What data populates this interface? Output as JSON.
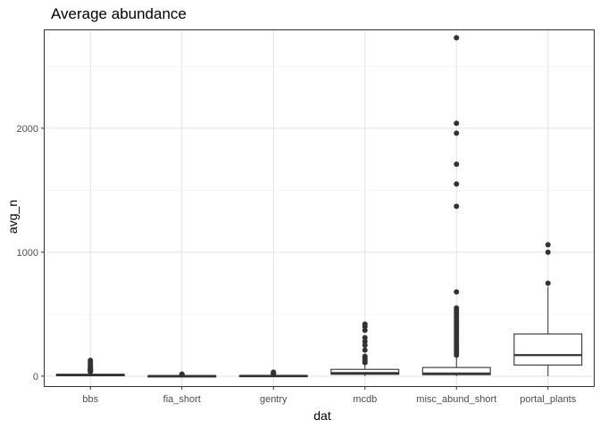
{
  "chart_data": {
    "type": "boxplot",
    "title": "Average abundance",
    "xlabel": "dat",
    "ylabel": "avg_n",
    "ylim": [
      -80,
      2790
    ],
    "yticks": [
      0,
      1000,
      2000
    ],
    "ytick_labels": [
      "0",
      "1000",
      "2000"
    ],
    "grid": "on",
    "categories": [
      "bbs",
      "fia_short",
      "gentry",
      "mcdb",
      "misc_abund_short",
      "portal_plants"
    ],
    "boxes": [
      {
        "category": "bbs",
        "whisker_low": 0,
        "q1": 3,
        "median": 8,
        "q3": 16,
        "whisker_high": 30,
        "outliers": [
          35,
          40,
          45,
          50,
          55,
          62,
          70,
          80,
          95,
          110,
          128
        ]
      },
      {
        "category": "fia_short",
        "whisker_low": 0,
        "q1": 1,
        "median": 2,
        "q3": 4,
        "whisker_high": 8,
        "outliers": [
          10,
          13,
          17
        ]
      },
      {
        "category": "gentry",
        "whisker_low": 0,
        "q1": 1,
        "median": 3,
        "q3": 6,
        "whisker_high": 12,
        "outliers": [
          15,
          20,
          25,
          32
        ]
      },
      {
        "category": "mcdb",
        "whisker_low": 0,
        "q1": 15,
        "median": 25,
        "q3": 55,
        "whisker_high": 95,
        "outliers": [
          110,
          125,
          140,
          160,
          210,
          250,
          280,
          310,
          370,
          400,
          420
        ]
      },
      {
        "category": "misc_abund_short",
        "whisker_low": 0,
        "q1": 12,
        "median": 22,
        "q3": 70,
        "whisker_high": 150,
        "outliers": [
          170,
          190,
          210,
          230,
          250,
          270,
          290,
          310,
          330,
          350,
          370,
          390,
          410,
          430,
          450,
          470,
          490,
          510,
          530,
          550,
          680,
          1370,
          1550,
          1710,
          1960,
          2040,
          2730
        ]
      },
      {
        "category": "portal_plants",
        "whisker_low": 0,
        "q1": 90,
        "median": 170,
        "q3": 340,
        "whisker_high": 720,
        "outliers": [
          750,
          1000,
          1060
        ]
      }
    ]
  }
}
